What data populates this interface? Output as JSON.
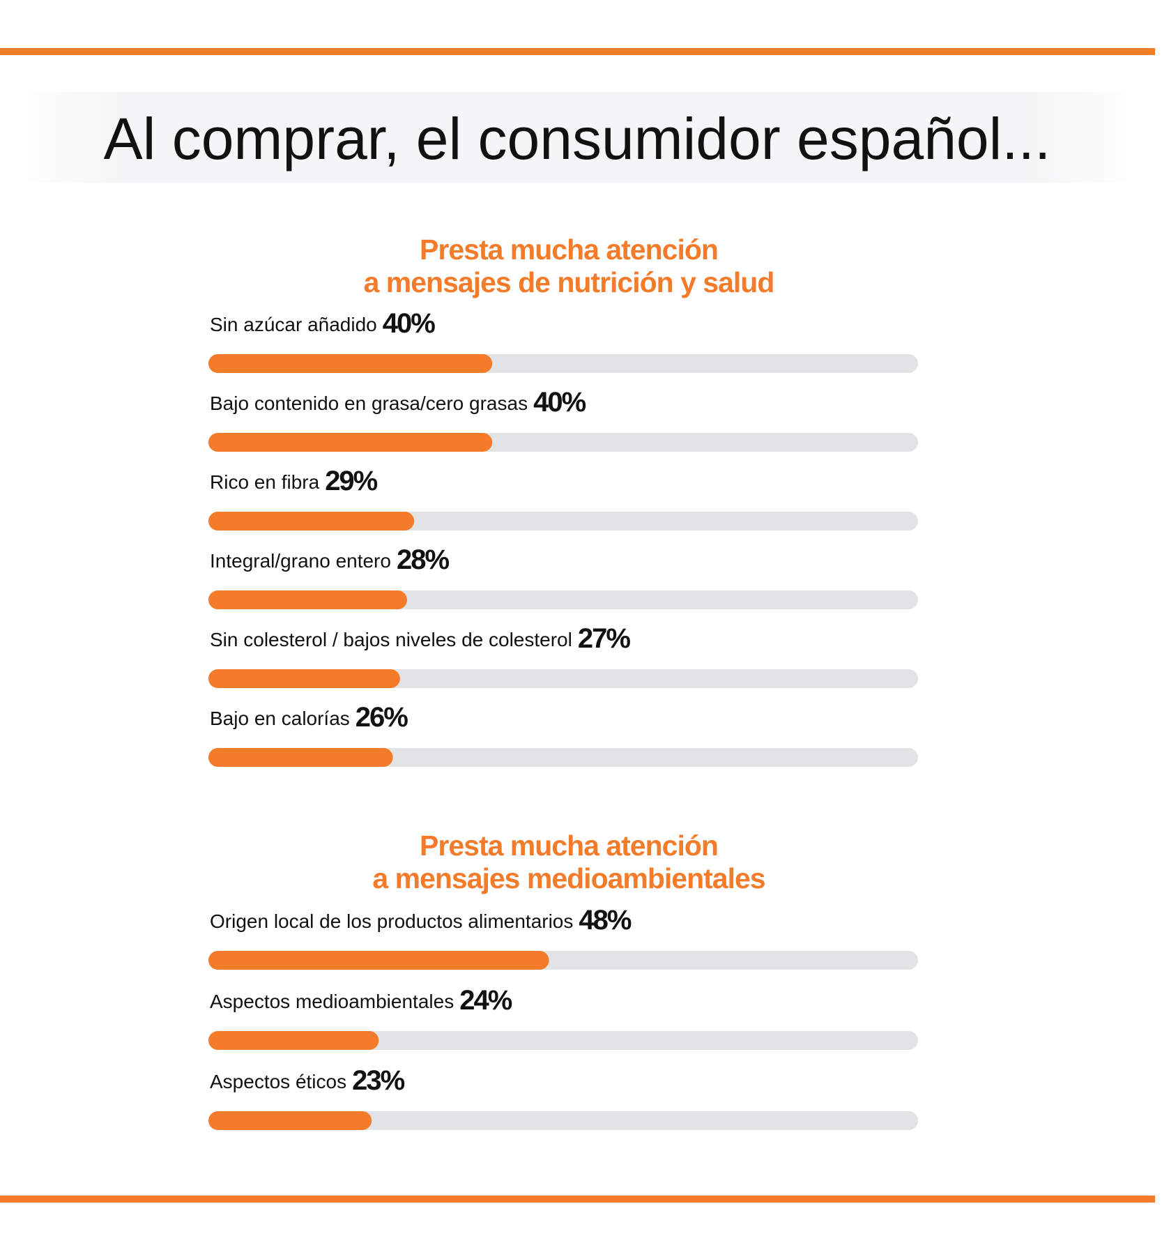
{
  "header": {
    "title": "Al comprar, el consumidor español..."
  },
  "chart_data": [
    {
      "type": "bar",
      "orientation": "horizontal",
      "title": [
        "Presta mucha atención",
        "a mensajes de nutrición y salud"
      ],
      "categories": [
        "Sin azúcar añadido",
        "Bajo contenido en grasa/cero grasas",
        "Rico en fibra",
        "Integral/grano entero",
        "Sin colesterol / bajos niveles de colesterol",
        "Bajo en calorías"
      ],
      "values": [
        40,
        40,
        29,
        28,
        27,
        26
      ],
      "value_labels": [
        "40%",
        "40%",
        "29%",
        "28%",
        "27%",
        "26%"
      ],
      "xlim": [
        0,
        100
      ],
      "color": "#f47b2a",
      "track_color": "#e2e3e5"
    },
    {
      "type": "bar",
      "orientation": "horizontal",
      "title": [
        "Presta mucha atención",
        "a mensajes medioambientales"
      ],
      "categories": [
        "Origen local de los productos alimentarios",
        "Aspectos medioambientales",
        "Aspectos éticos"
      ],
      "values": [
        48,
        24,
        23
      ],
      "value_labels": [
        "48%",
        "24%",
        "23%"
      ],
      "xlim": [
        0,
        100
      ],
      "color": "#f47b2a",
      "track_color": "#e2e3e5"
    }
  ]
}
